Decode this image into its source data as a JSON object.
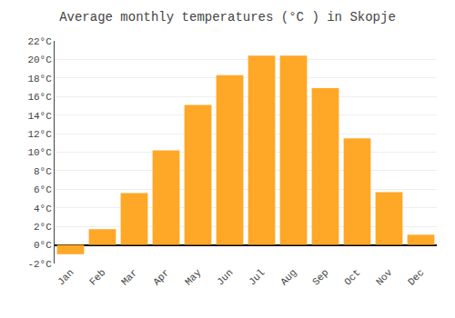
{
  "chart_data": {
    "type": "bar",
    "title": "Average monthly temperatures (°C ) in Skopje",
    "categories": [
      "Jan",
      "Feb",
      "Mar",
      "Apr",
      "May",
      "Jun",
      "Jul",
      "Aug",
      "Sep",
      "Oct",
      "Nov",
      "Dec"
    ],
    "values": [
      -1.0,
      1.7,
      5.6,
      10.2,
      15.1,
      18.3,
      20.4,
      20.4,
      16.9,
      11.5,
      5.7,
      1.1
    ],
    "color": "#FFA726",
    "ylim": [
      -2,
      22
    ],
    "yticks": [
      {
        "value": -2,
        "label": "-2°C"
      },
      {
        "value": 0,
        "label": "0°C"
      },
      {
        "value": 2,
        "label": "2°C"
      },
      {
        "value": 4,
        "label": "4°C"
      },
      {
        "value": 6,
        "label": "6°C"
      },
      {
        "value": 8,
        "label": "8°C"
      },
      {
        "value": 10,
        "label": "10°C"
      },
      {
        "value": 12,
        "label": "12°C"
      },
      {
        "value": 14,
        "label": "14°C"
      },
      {
        "value": 16,
        "label": "16°C"
      },
      {
        "value": 18,
        "label": "18°C"
      },
      {
        "value": 20,
        "label": "20°C"
      },
      {
        "value": 22,
        "label": "22°C"
      }
    ],
    "grid": true
  }
}
